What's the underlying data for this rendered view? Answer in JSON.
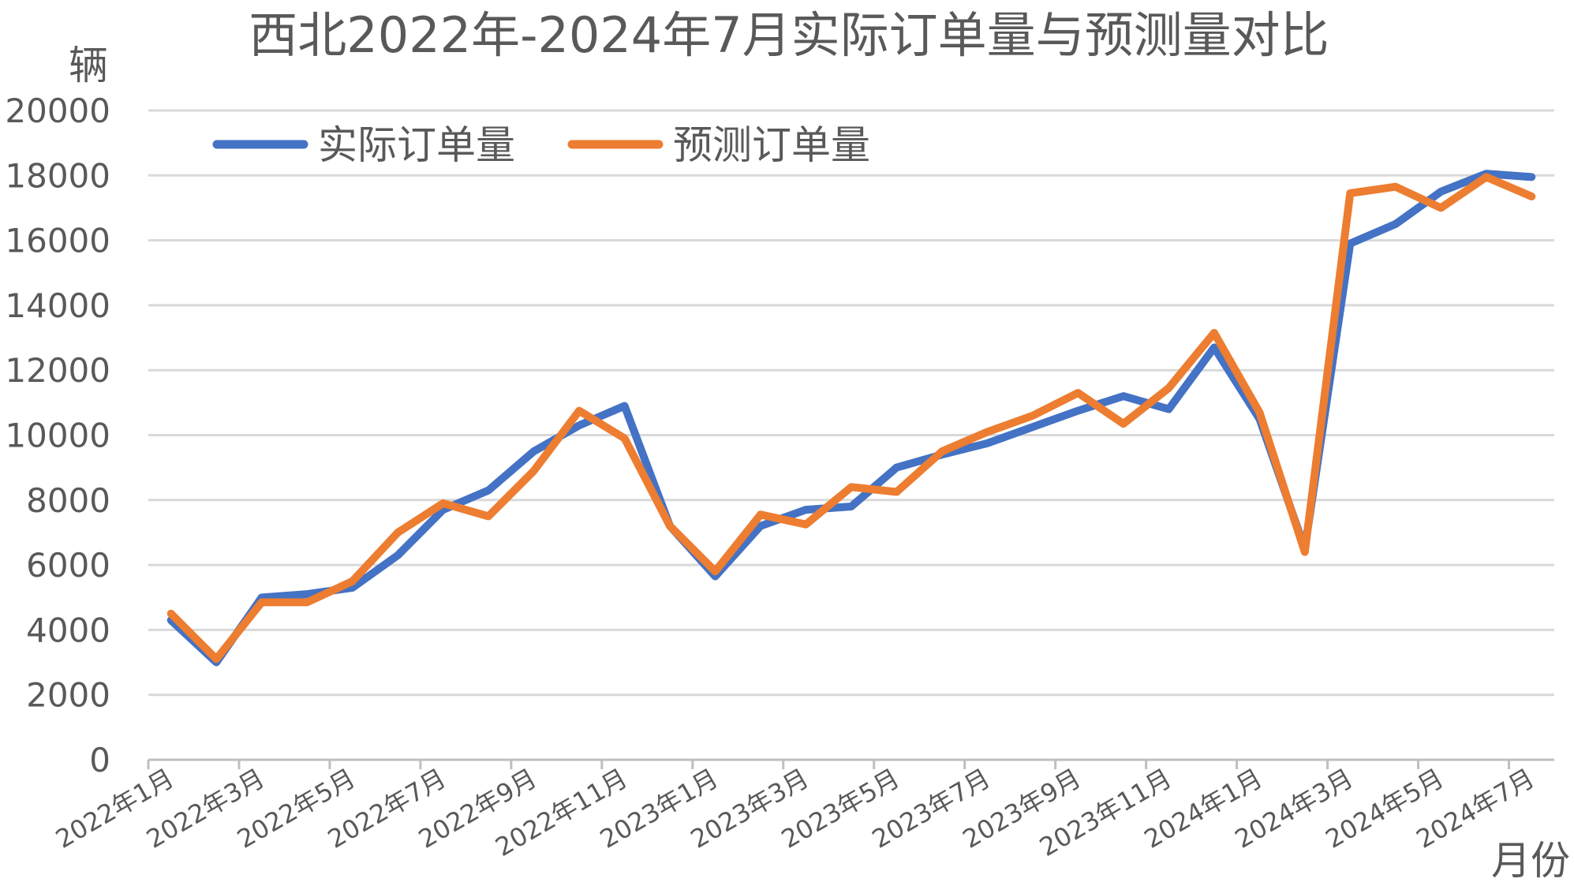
{
  "chart_data": {
    "type": "line",
    "title": "西北2022年-2024年7月实际订单量与预测量对比",
    "ylabel": "辆",
    "xlabel": "月份",
    "ylim": [
      0,
      20000
    ],
    "y_ticks": [
      0,
      2000,
      4000,
      6000,
      8000,
      10000,
      12000,
      14000,
      16000,
      18000,
      20000
    ],
    "grid": true,
    "legend_position": "top-left",
    "categories": [
      "2022年1月",
      "2022年2月",
      "2022年3月",
      "2022年4月",
      "2022年5月",
      "2022年6月",
      "2022年7月",
      "2022年8月",
      "2022年9月",
      "2022年10月",
      "2022年11月",
      "2022年12月",
      "2023年1月",
      "2023年2月",
      "2023年3月",
      "2023年4月",
      "2023年5月",
      "2023年6月",
      "2023年7月",
      "2023年8月",
      "2023年9月",
      "2023年10月",
      "2023年11月",
      "2023年12月",
      "2024年1月",
      "2024年2月",
      "2024年3月",
      "2024年4月",
      "2024年5月",
      "2024年6月",
      "2024年7月"
    ],
    "x_tick_labels": [
      "2022年1月",
      "2022年3月",
      "2022年5月",
      "2022年7月",
      "2022年9月",
      "2022年11月",
      "2023年1月",
      "2023年3月",
      "2023年5月",
      "2023年7月",
      "2023年9月",
      "2023年11月",
      "2024年1月",
      "2024年3月",
      "2024年5月",
      "2024年7月"
    ],
    "series": [
      {
        "name": "实际订单量",
        "color": "#4472C4",
        "values": [
          4300,
          3000,
          5000,
          5100,
          5300,
          6300,
          7700,
          8300,
          9500,
          10300,
          10900,
          7200,
          5650,
          7200,
          7700,
          7800,
          9000,
          9400,
          9750,
          10250,
          10750,
          11200,
          10800,
          12700,
          10500,
          6500,
          15900,
          16500,
          17500,
          18050,
          17950
        ]
      },
      {
        "name": "预测订单量",
        "color": "#ED7D31",
        "values": [
          4500,
          3100,
          4850,
          4850,
          5500,
          7000,
          7900,
          7500,
          8900,
          10750,
          9900,
          7200,
          5800,
          7550,
          7250,
          8400,
          8250,
          9500,
          10100,
          10600,
          11300,
          10350,
          11450,
          13150,
          10700,
          6400,
          17450,
          17650,
          17000,
          17950,
          17350
        ]
      }
    ]
  }
}
